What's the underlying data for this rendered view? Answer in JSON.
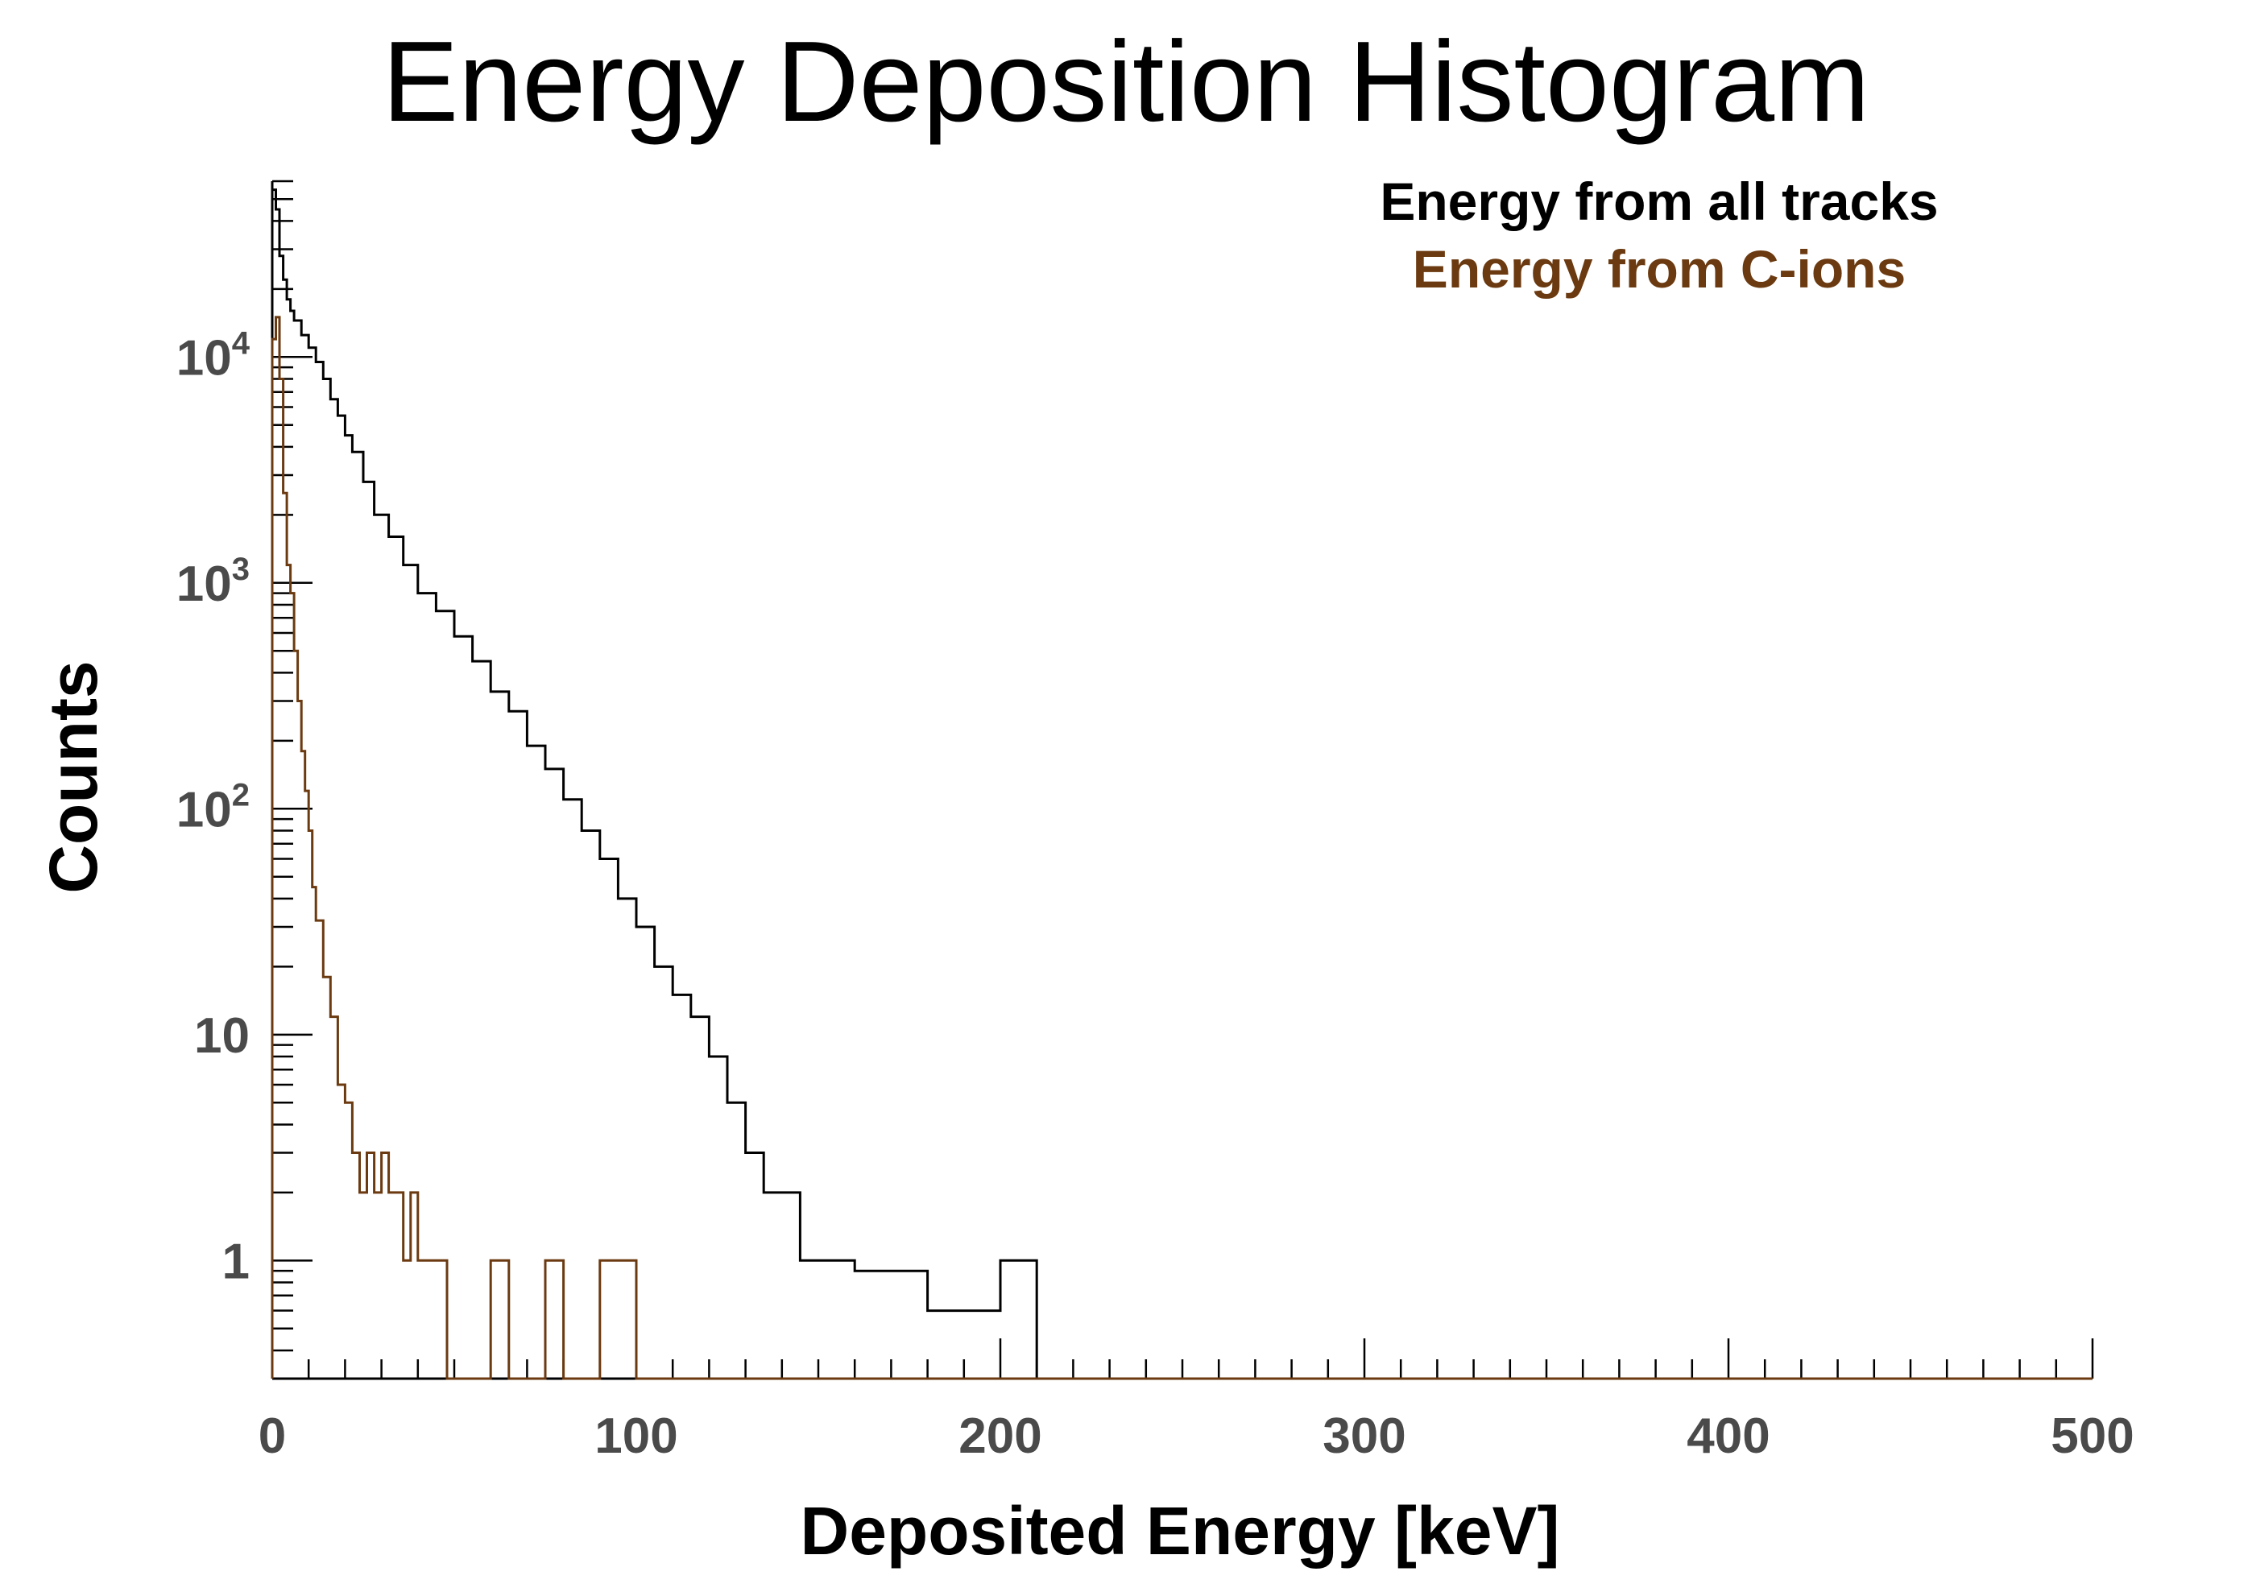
{
  "chart_data": {
    "type": "line",
    "title": "Energy Deposition Histogram",
    "xlabel": "Deposited Energy [keV]",
    "ylabel": "Counts",
    "xlim": [
      0,
      500
    ],
    "ylim": [
      0.3,
      60000
    ],
    "y_scale": "log",
    "grid": false,
    "legend_position": "top-right",
    "bin_width_keV": 1,
    "x_ticks": [
      0,
      100,
      200,
      300,
      400,
      500
    ],
    "x_tick_labels": [
      "0",
      "100",
      "200",
      "300",
      "400",
      "500"
    ],
    "y_ticks": [
      1,
      10,
      100,
      1000,
      10000
    ],
    "y_tick_labels": [
      {
        "base": "1",
        "exp": ""
      },
      {
        "base": "10",
        "exp": ""
      },
      {
        "base": "10",
        "exp": "2"
      },
      {
        "base": "10",
        "exp": "3"
      },
      {
        "base": "10",
        "exp": "4"
      }
    ],
    "series": [
      {
        "name": "Energy from all tracks",
        "color": "#000000",
        "x": [
          0,
          1,
          2,
          3,
          4,
          5,
          6,
          8,
          10,
          12,
          14,
          16,
          18,
          20,
          22,
          25,
          28,
          32,
          36,
          40,
          45,
          50,
          55,
          60,
          65,
          70,
          75,
          80,
          85,
          90,
          95,
          100,
          105,
          110,
          115,
          120,
          125,
          130,
          135,
          140,
          145,
          150,
          155,
          160,
          170,
          180,
          190,
          200,
          210
        ],
        "y": [
          55000,
          45000,
          28000,
          22000,
          18000,
          16000,
          14500,
          12500,
          11000,
          9500,
          8000,
          6500,
          5500,
          4500,
          3800,
          2800,
          2000,
          1600,
          1200,
          900,
          750,
          580,
          450,
          330,
          270,
          190,
          150,
          110,
          80,
          60,
          40,
          30,
          20,
          15,
          12,
          8,
          5,
          3,
          2,
          2,
          1,
          1,
          1,
          0.9,
          0.9,
          0.6,
          0.6,
          1,
          0.3
        ]
      },
      {
        "name": "Energy from C-ions",
        "color": "#6b3a10",
        "x": [
          0,
          1,
          2,
          3,
          4,
          5,
          6,
          7,
          8,
          9,
          10,
          11,
          12,
          14,
          16,
          18,
          20,
          22,
          24,
          26,
          28,
          30,
          32,
          34,
          36,
          38,
          40,
          42,
          45,
          48,
          55,
          60,
          65,
          75,
          80,
          90,
          100
        ],
        "y": [
          12000,
          15000,
          8000,
          2500,
          1200,
          900,
          500,
          300,
          180,
          120,
          80,
          45,
          32,
          18,
          12,
          6,
          5,
          3,
          2,
          3,
          2,
          3,
          2,
          2,
          1,
          2,
          1,
          1,
          1,
          0.3,
          0.3,
          1,
          0.3,
          1,
          0.3,
          1,
          0.3
        ]
      }
    ]
  }
}
